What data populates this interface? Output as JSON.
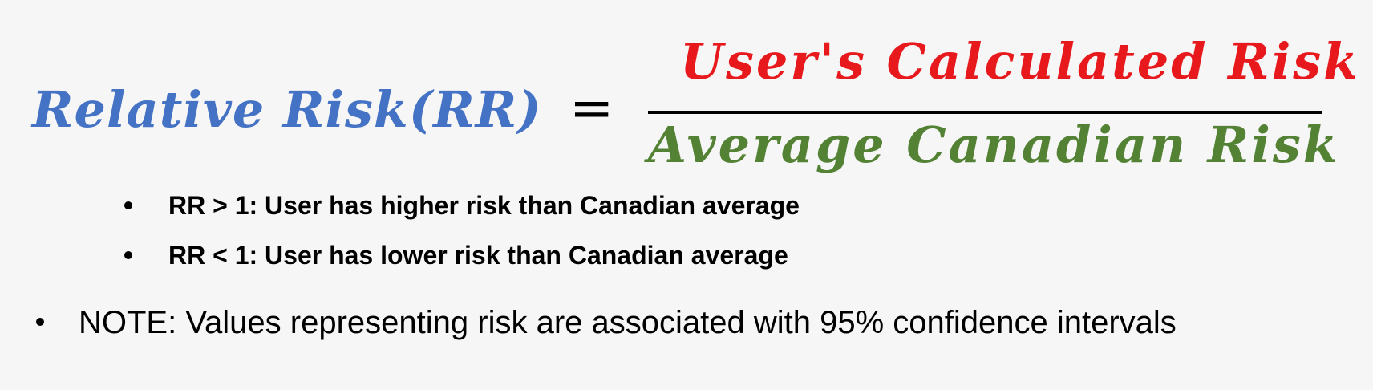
{
  "equation": {
    "lhs": "Relative Risk(RR)",
    "operator": "=",
    "numerator": "User's Calculated Risk",
    "denominator": "Average Canadian Risk",
    "colors": {
      "lhs": "#4472c4",
      "numerator": "#e8191d",
      "denominator": "#548235"
    }
  },
  "bullets": [
    {
      "text": "RR > 1: User has higher risk than Canadian average"
    },
    {
      "text": "RR < 1: User has lower risk than Canadian average"
    }
  ],
  "note": {
    "text": "NOTE: Values representing risk are associated with 95% confidence intervals"
  }
}
